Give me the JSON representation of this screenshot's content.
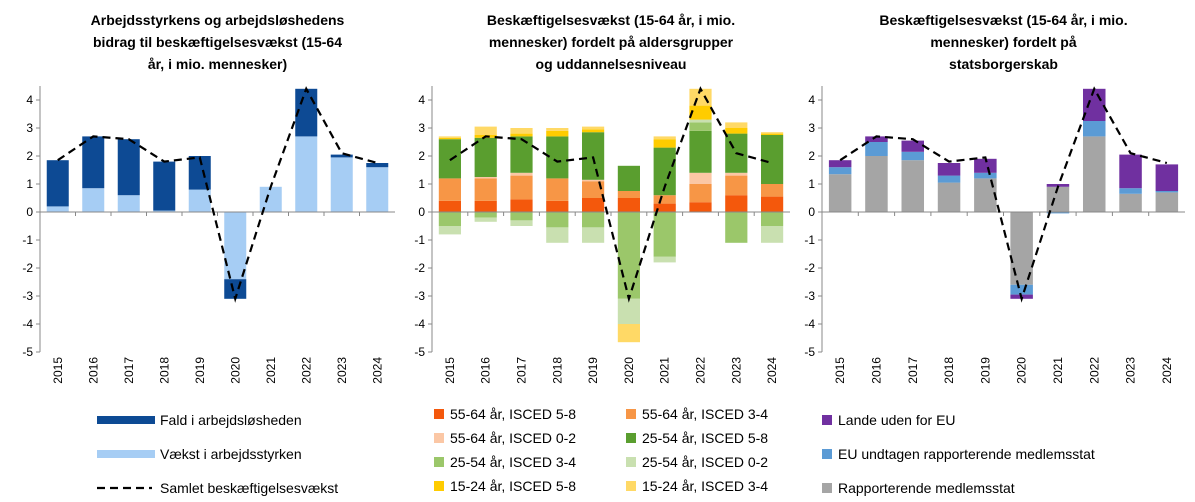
{
  "chart_data": [
    {
      "type": "bar",
      "title": [
        "Arbejdsstyrkens og arbejdsløshedens",
        "bidrag til beskæftigelsesvækst (15-64",
        "år, i mio. mennesker)"
      ],
      "categories": [
        "2015",
        "2016",
        "2017",
        "2018",
        "2019",
        "2020",
        "2021",
        "2022",
        "2023",
        "2024"
      ],
      "series": [
        {
          "name": "Vækst i arbejdsstyrken",
          "color": "#a6cdf4",
          "values": [
            0.2,
            0.85,
            0.6,
            0.05,
            0.8,
            -2.4,
            0.9,
            2.7,
            1.95,
            1.6
          ]
        },
        {
          "name": "Fald i arbejdsløsheden",
          "color": "#0d4a94",
          "values": [
            1.65,
            1.85,
            2.0,
            1.75,
            1.2,
            -0.7,
            0,
            1.7,
            0.1,
            0.15
          ]
        },
        {
          "name": "Samlet beskæftigelsesvækst",
          "type": "line",
          "color": "#000000",
          "values": [
            1.85,
            2.7,
            2.6,
            1.8,
            1.95,
            -3.1,
            0.9,
            4.4,
            2.1,
            1.75
          ]
        }
      ],
      "ylim": [
        -5,
        4.5
      ],
      "yticks": [
        -5,
        -4,
        -3,
        -2,
        -1,
        0,
        1,
        2,
        3,
        4
      ]
    },
    {
      "type": "bar",
      "title": [
        "Beskæftigelsesvækst (15-64 år, i mio.",
        "mennesker) fordelt på aldersgrupper",
        "og uddannelsesniveau"
      ],
      "categories": [
        "2015",
        "2016",
        "2017",
        "2018",
        "2019",
        "2020",
        "2021",
        "2022",
        "2023",
        "2024"
      ],
      "series": [
        {
          "name": "55-64 år, ISCED 5-8",
          "color": "#f4580c",
          "values": [
            0.4,
            0.4,
            0.45,
            0.4,
            0.5,
            0.5,
            0.3,
            0.35,
            0.6,
            0.55
          ]
        },
        {
          "name": "55-64 år, ISCED 3-4",
          "color": "#f79646",
          "values": [
            0.8,
            0.8,
            0.85,
            0.8,
            0.6,
            0.25,
            0.3,
            0.65,
            0.7,
            0.45
          ]
        },
        {
          "name": "55-64 år, ISCED 0-2",
          "color": "#fbc7a5",
          "values": [
            0,
            0.05,
            0.1,
            0,
            0.05,
            0,
            0,
            0.4,
            0.1,
            0
          ]
        },
        {
          "name": "25-54 år, ISCED 5-8",
          "color": "#5a9e2f",
          "values": [
            1.4,
            1.4,
            1.3,
            1.5,
            1.7,
            0.9,
            1.7,
            1.5,
            1.4,
            1.75
          ]
        },
        {
          "name": "25-54 år, ISCED 3-4",
          "color": "#9bc76a",
          "values": [
            -0.5,
            -0.2,
            -0.3,
            -0.55,
            -0.55,
            -3.1,
            -1.6,
            0.3,
            -1.1,
            -0.5
          ]
        },
        {
          "name": "25-54 år, ISCED 0-2",
          "color": "#c9e0b0",
          "values": [
            -0.3,
            -0.15,
            -0.2,
            -0.55,
            -0.55,
            -0.9,
            -0.2,
            0.1,
            0,
            -0.6
          ]
        },
        {
          "name": "15-24 år, ISCED 5-8",
          "color": "#ffcc00",
          "values": [
            0.05,
            0.1,
            0.1,
            0.2,
            0.1,
            0,
            0.3,
            0.5,
            0.2,
            0.05
          ]
        },
        {
          "name": "15-24 år, ISCED 3-4",
          "color": "#ffd966",
          "values": [
            0.05,
            0.3,
            0.2,
            0.1,
            0.1,
            -0.65,
            0.1,
            0.6,
            0.2,
            0.05
          ]
        },
        {
          "type": "line",
          "color": "#000000",
          "values": [
            1.85,
            2.7,
            2.6,
            1.8,
            1.95,
            -3.1,
            0.9,
            4.4,
            2.1,
            1.75
          ]
        }
      ],
      "ylim": [
        -5,
        4.5
      ],
      "yticks": [
        -5,
        -4,
        -3,
        -2,
        -1,
        0,
        1,
        2,
        3,
        4
      ]
    },
    {
      "type": "bar",
      "title": [
        "Beskæftigelsesvækst (15-64 år, i mio.",
        "mennesker) fordelt på",
        "statsborgerskab"
      ],
      "categories": [
        "2015",
        "2016",
        "2017",
        "2018",
        "2019",
        "2020",
        "2021",
        "2022",
        "2023",
        "2024"
      ],
      "series": [
        {
          "name": "Rapporterende medlemsstat",
          "color": "#a5a5a5",
          "values": [
            1.35,
            2.0,
            1.85,
            1.05,
            1.2,
            -2.6,
            0.9,
            2.7,
            0.65,
            0.7
          ]
        },
        {
          "name": "EU undtagen rapporterende medlemsstat",
          "color": "#5b9bd5",
          "values": [
            0.25,
            0.5,
            0.3,
            0.25,
            0.2,
            -0.35,
            -0.05,
            0.55,
            0.2,
            0.05
          ]
        },
        {
          "name": "Lande uden for EU",
          "color": "#7030a0",
          "values": [
            0.25,
            0.2,
            0.4,
            0.45,
            0.5,
            -0.15,
            0.1,
            1.15,
            1.2,
            0.95
          ]
        },
        {
          "type": "line",
          "color": "#000000",
          "values": [
            1.85,
            2.7,
            2.6,
            1.8,
            1.95,
            -3.1,
            0.9,
            4.4,
            2.1,
            1.75
          ]
        }
      ],
      "ylim": [
        -5,
        4.5
      ],
      "yticks": [
        -5,
        -4,
        -3,
        -2,
        -1,
        0,
        1,
        2,
        3,
        4
      ]
    }
  ]
}
